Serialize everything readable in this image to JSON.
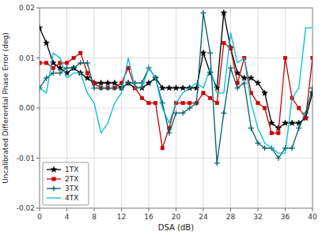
{
  "chart_data": {
    "type": "line",
    "title": "",
    "xlabel": "DSA (dB)",
    "ylabel": "Uncalibrated Differential Phase Error (deg)",
    "x": [
      0,
      1,
      2,
      3,
      4,
      5,
      6,
      7,
      8,
      9,
      10,
      11,
      12,
      13,
      14,
      15,
      16,
      17,
      18,
      19,
      20,
      21,
      22,
      23,
      24,
      25,
      26,
      27,
      28,
      29,
      30,
      31,
      32,
      33,
      34,
      35,
      36,
      37,
      38,
      39,
      40
    ],
    "series": [
      {
        "name": "1TX",
        "color": "#000000",
        "marker": "star",
        "values": [
          0.016,
          0.013,
          0.009,
          0.008,
          0.007,
          0.008,
          0.007,
          0.006,
          0.005,
          0.005,
          0.005,
          0.005,
          0.004,
          0.005,
          0.004,
          0.004,
          0.005,
          0.006,
          0.004,
          0.004,
          0.004,
          0.004,
          0.004,
          0.004,
          0.011,
          0.007,
          0.004,
          0.019,
          0.012,
          0.007,
          0.006,
          0.006,
          0.005,
          0.003,
          -0.003,
          -0.004,
          -0.003,
          -0.003,
          -0.003,
          -0.002,
          0.003
        ]
      },
      {
        "name": "2TX",
        "color": "#cc0000",
        "marker": "square",
        "values": [
          0.009,
          0.009,
          0.008,
          0.009,
          0.009,
          0.01,
          0.011,
          0.007,
          0.005,
          0.004,
          0.004,
          0.004,
          0.005,
          0.008,
          0.004,
          0.002,
          0.001,
          0.001,
          -0.008,
          -0.004,
          0.001,
          0.001,
          0.001,
          0.001,
          0.003,
          0.002,
          0.001,
          0.013,
          0.012,
          0.005,
          0.01,
          0.003,
          0.001,
          0.0,
          -0.005,
          -0.005,
          0.01,
          0.002,
          0.0,
          -0.002,
          0.01
        ]
      },
      {
        "name": "3TX",
        "color": "#005f6b",
        "marker": "plus",
        "values": [
          0.004,
          0.006,
          0.007,
          0.007,
          0.008,
          0.008,
          0.009,
          0.009,
          0.004,
          0.004,
          0.004,
          0.004,
          0.004,
          0.005,
          0.005,
          0.005,
          0.008,
          0.006,
          0.001,
          -0.005,
          -0.001,
          -0.001,
          0.0,
          0.001,
          0.019,
          0.011,
          -0.011,
          -0.001,
          0.008,
          0.004,
          0.005,
          -0.004,
          -0.007,
          -0.008,
          -0.008,
          -0.01,
          -0.008,
          -0.008,
          -0.004,
          -0.001,
          0.004
        ]
      },
      {
        "name": "4TX",
        "color": "#00bcd4",
        "marker": "none",
        "values": [
          0.004,
          0.003,
          0.011,
          0.01,
          0.006,
          0.007,
          0.007,
          0.003,
          0.001,
          -0.005,
          -0.003,
          0.001,
          0.003,
          0.01,
          0.004,
          0.004,
          0.008,
          0.006,
          0.0,
          -0.003,
          0.001,
          0.003,
          0.004,
          0.005,
          0.004,
          0.008,
          0.003,
          0.003,
          0.015,
          0.009,
          0.01,
          0.001,
          -0.004,
          -0.007,
          -0.008,
          -0.009,
          -0.009,
          0.002,
          0.004,
          0.016,
          0.016
        ]
      }
    ],
    "xlim": [
      0,
      40
    ],
    "ylim": [
      -0.02,
      0.02
    ],
    "xticks": [
      0,
      4,
      8,
      12,
      16,
      20,
      24,
      28,
      32,
      36,
      40
    ],
    "yticks": [
      -0.02,
      -0.01,
      {
        "value": 0,
        "label": "0.00"
      },
      0.01,
      0.02
    ],
    "grid": true,
    "legend": "lower left"
  }
}
